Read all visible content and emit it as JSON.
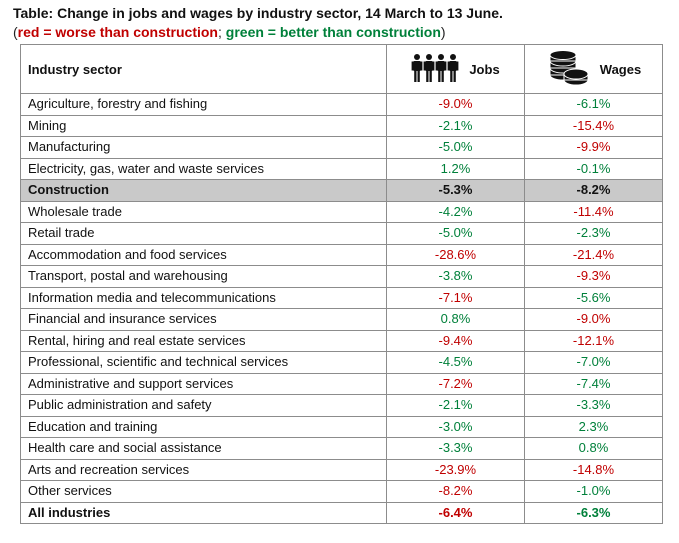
{
  "title": "Table: Change in jobs and wages by industry sector, 14 March to 13 June.",
  "legend": {
    "open": "(",
    "red_label": "red = worse than construction",
    "separator": "; ",
    "green_label": "green = better than construction",
    "close": ")"
  },
  "colors": {
    "worse": "#c00000",
    "better": "#00803a",
    "highlight": "#c9c9c9"
  },
  "table": {
    "headers": {
      "sector": "Industry sector",
      "jobs": "Jobs",
      "jobs_icon": "people-icon",
      "wages": "Wages",
      "wages_icon": "coins-icon"
    },
    "rows": [
      {
        "sector": "Agriculture, forestry and fishing",
        "jobs": "-9.0%",
        "jobs_status": "worse",
        "wages": "-6.1%",
        "wages_status": "better"
      },
      {
        "sector": "Mining",
        "jobs": "-2.1%",
        "jobs_status": "better",
        "wages": "-15.4%",
        "wages_status": "worse"
      },
      {
        "sector": "Manufacturing",
        "jobs": "-5.0%",
        "jobs_status": "better",
        "wages": "-9.9%",
        "wages_status": "worse"
      },
      {
        "sector": "Electricity, gas, water and waste services",
        "jobs": "1.2%",
        "jobs_status": "better",
        "wages": "-0.1%",
        "wages_status": "better"
      },
      {
        "sector": "Construction",
        "jobs": "-5.3%",
        "jobs_status": "neutral",
        "wages": "-8.2%",
        "wages_status": "neutral",
        "highlight": true
      },
      {
        "sector": "Wholesale trade",
        "jobs": "-4.2%",
        "jobs_status": "better",
        "wages": "-11.4%",
        "wages_status": "worse"
      },
      {
        "sector": "Retail trade",
        "jobs": "-5.0%",
        "jobs_status": "better",
        "wages": "-2.3%",
        "wages_status": "better"
      },
      {
        "sector": "Accommodation and food services",
        "jobs": "-28.6%",
        "jobs_status": "worse",
        "wages": "-21.4%",
        "wages_status": "worse"
      },
      {
        "sector": "Transport, postal and warehousing",
        "jobs": "-3.8%",
        "jobs_status": "better",
        "wages": "-9.3%",
        "wages_status": "worse"
      },
      {
        "sector": "Information media and telecommunications",
        "jobs": "-7.1%",
        "jobs_status": "worse",
        "wages": "-5.6%",
        "wages_status": "better"
      },
      {
        "sector": "Financial and insurance services",
        "jobs": "0.8%",
        "jobs_status": "better",
        "wages": "-9.0%",
        "wages_status": "worse"
      },
      {
        "sector": "Rental, hiring and real estate services",
        "jobs": "-9.4%",
        "jobs_status": "worse",
        "wages": "-12.1%",
        "wages_status": "worse"
      },
      {
        "sector": "Professional, scientific and technical services",
        "jobs": "-4.5%",
        "jobs_status": "better",
        "wages": "-7.0%",
        "wages_status": "better"
      },
      {
        "sector": "Administrative and support services",
        "jobs": "-7.2%",
        "jobs_status": "worse",
        "wages": "-7.4%",
        "wages_status": "better"
      },
      {
        "sector": "Public administration and safety",
        "jobs": "-2.1%",
        "jobs_status": "better",
        "wages": "-3.3%",
        "wages_status": "better"
      },
      {
        "sector": "Education and training",
        "jobs": "-3.0%",
        "jobs_status": "better",
        "wages": "2.3%",
        "wages_status": "better"
      },
      {
        "sector": "Health care and social assistance",
        "jobs": "-3.3%",
        "jobs_status": "better",
        "wages": "0.8%",
        "wages_status": "better"
      },
      {
        "sector": "Arts and recreation services",
        "jobs": "-23.9%",
        "jobs_status": "worse",
        "wages": "-14.8%",
        "wages_status": "worse"
      },
      {
        "sector": "Other services",
        "jobs": "-8.2%",
        "jobs_status": "worse",
        "wages": "-1.0%",
        "wages_status": "better"
      },
      {
        "sector": "All industries",
        "jobs": "-6.4%",
        "jobs_status": "worse",
        "wages": "-6.3%",
        "wages_status": "better",
        "bold": true
      }
    ]
  }
}
